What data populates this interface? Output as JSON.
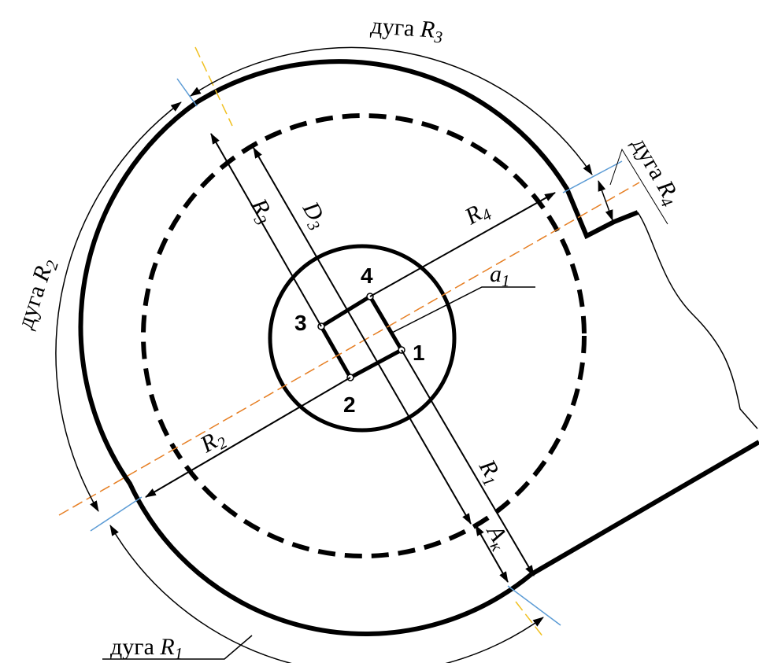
{
  "arcs": {
    "r3": {
      "prefix": "дуга ",
      "var": "R",
      "sub": "3"
    },
    "r2": {
      "prefix": "дуга ",
      "var": "R",
      "sub": "2"
    },
    "r4": {
      "prefix": "дуга ",
      "var": "R",
      "sub": "4"
    },
    "r1": {
      "prefix": "дуга ",
      "var": "R",
      "sub": "1"
    }
  },
  "dims": {
    "r1": {
      "var": "R",
      "sub": "1"
    },
    "r2": {
      "var": "R",
      "sub": "2"
    },
    "r3": {
      "var": "R",
      "sub": "3"
    },
    "r4": {
      "var": "R",
      "sub": "4"
    },
    "d3": {
      "var": "D",
      "sub": "3"
    },
    "a1": {
      "var": "a",
      "sub": "1"
    },
    "ak": {
      "var": "A",
      "sub": "к"
    }
  },
  "points": [
    "1",
    "2",
    "3",
    "4"
  ],
  "colors": {
    "outline": "#000000",
    "axis": "#e67e22",
    "blue": "#5b9bd5",
    "yellow": "#f0c020"
  }
}
